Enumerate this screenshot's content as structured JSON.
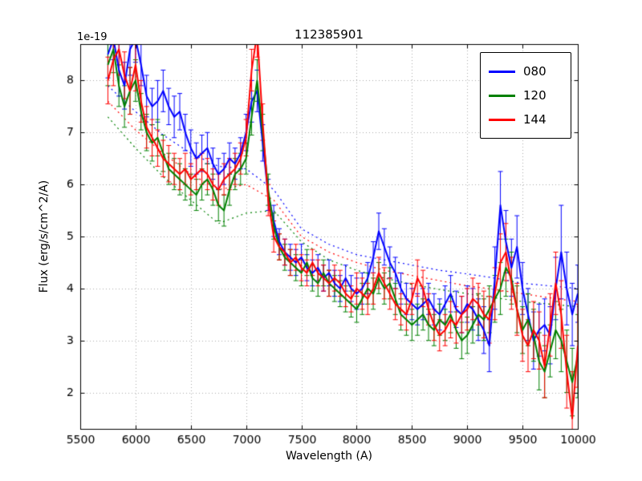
{
  "figure": {
    "background": "#ffffff",
    "axes_color": "#000000",
    "grid_color": "#aaaaaa"
  },
  "chart_data": {
    "type": "line",
    "title": "112385901",
    "xlabel": "Wavelength (A)",
    "ylabel": "Flux (erg/s/cm^2/A)",
    "y_offset_text": "1e-19",
    "xlim": [
      5500,
      10000
    ],
    "ylim": [
      1.3,
      8.7
    ],
    "xticks": [
      5500,
      6000,
      6500,
      7000,
      7500,
      8000,
      8500,
      9000,
      9500,
      10000
    ],
    "yticks": [
      2,
      3,
      4,
      5,
      6,
      7,
      8
    ],
    "grid": true,
    "grid_style": "dotted",
    "legend_position": "upper right",
    "error_bars": true,
    "x": [
      5750,
      5800,
      5850,
      5900,
      5950,
      6000,
      6050,
      6100,
      6150,
      6200,
      6250,
      6300,
      6350,
      6400,
      6450,
      6500,
      6550,
      6600,
      6650,
      6700,
      6750,
      6800,
      6850,
      6900,
      6950,
      7000,
      7050,
      7100,
      7150,
      7200,
      7250,
      7300,
      7350,
      7400,
      7450,
      7500,
      7550,
      7600,
      7650,
      7700,
      7750,
      7800,
      7850,
      7900,
      7950,
      8000,
      8050,
      8100,
      8150,
      8200,
      8250,
      8300,
      8350,
      8400,
      8450,
      8500,
      8550,
      8600,
      8650,
      8700,
      8750,
      8800,
      8850,
      8900,
      8950,
      9000,
      9050,
      9100,
      9150,
      9200,
      9250,
      9300,
      9350,
      9400,
      9450,
      9500,
      9550,
      9600,
      9650,
      9700,
      9750,
      9800,
      9850,
      9900,
      9950,
      10000
    ],
    "series": [
      {
        "name": "080",
        "color": "#0000ff",
        "values": [
          8.5,
          8.8,
          8.2,
          7.9,
          8.6,
          8.8,
          8.3,
          7.7,
          7.5,
          7.6,
          7.8,
          7.5,
          7.3,
          7.4,
          7.0,
          6.7,
          6.5,
          6.6,
          6.7,
          6.4,
          6.2,
          6.3,
          6.5,
          6.4,
          6.6,
          7.0,
          7.6,
          7.8,
          6.8,
          5.8,
          5.3,
          4.9,
          4.7,
          4.6,
          4.5,
          4.6,
          4.4,
          4.3,
          4.4,
          4.2,
          4.3,
          4.1,
          4.0,
          4.2,
          4.0,
          3.9,
          4.0,
          4.2,
          4.6,
          5.1,
          4.8,
          4.5,
          4.3,
          4.0,
          3.8,
          3.7,
          3.6,
          3.7,
          3.8,
          3.6,
          3.5,
          3.7,
          3.9,
          3.6,
          3.5,
          3.7,
          3.6,
          3.4,
          3.2,
          2.9,
          4.2,
          5.6,
          4.9,
          4.4,
          4.8,
          4.0,
          3.5,
          3.0,
          3.2,
          3.3,
          3.1,
          4.0,
          4.7,
          4.0,
          3.5,
          3.9
        ],
        "err": [
          0.45,
          0.4,
          0.5,
          0.45,
          0.5,
          0.45,
          0.4,
          0.4,
          0.35,
          0.4,
          0.4,
          0.35,
          0.4,
          0.35,
          0.35,
          0.35,
          0.3,
          0.35,
          0.3,
          0.3,
          0.3,
          0.3,
          0.3,
          0.3,
          0.3,
          0.35,
          0.4,
          0.4,
          0.35,
          0.3,
          0.3,
          0.25,
          0.25,
          0.25,
          0.25,
          0.25,
          0.25,
          0.25,
          0.25,
          0.25,
          0.25,
          0.25,
          0.25,
          0.25,
          0.25,
          0.3,
          0.3,
          0.3,
          0.3,
          0.35,
          0.35,
          0.3,
          0.3,
          0.3,
          0.3,
          0.3,
          0.3,
          0.3,
          0.3,
          0.3,
          0.3,
          0.35,
          0.35,
          0.35,
          0.35,
          0.35,
          0.4,
          0.4,
          0.45,
          0.5,
          0.6,
          0.65,
          0.6,
          0.55,
          0.6,
          0.5,
          0.5,
          0.55,
          0.5,
          0.5,
          0.55,
          0.6,
          0.9,
          0.7,
          0.6,
          0.55
        ]
      },
      {
        "name": "120",
        "color": "#008000",
        "values": [
          8.3,
          8.6,
          7.9,
          7.5,
          7.8,
          8.0,
          7.4,
          7.0,
          6.8,
          6.9,
          6.6,
          6.3,
          6.2,
          6.1,
          6.0,
          5.9,
          5.8,
          6.0,
          6.1,
          5.9,
          5.6,
          5.5,
          5.9,
          6.2,
          6.3,
          6.5,
          7.3,
          8.0,
          7.0,
          5.9,
          5.2,
          4.8,
          4.6,
          4.5,
          4.4,
          4.3,
          4.5,
          4.2,
          4.1,
          4.3,
          4.1,
          4.0,
          3.9,
          3.8,
          3.7,
          3.6,
          3.8,
          4.0,
          3.9,
          4.2,
          4.0,
          4.1,
          3.8,
          3.5,
          3.4,
          3.3,
          3.4,
          3.5,
          3.3,
          3.2,
          3.4,
          3.3,
          3.5,
          3.2,
          3.0,
          3.1,
          3.3,
          3.5,
          3.4,
          3.6,
          3.8,
          4.0,
          4.4,
          4.2,
          3.6,
          3.2,
          3.4,
          3.1,
          2.6,
          2.4,
          2.8,
          3.2,
          3.0,
          2.6,
          2.2,
          2.7
        ],
        "err": [
          0.4,
          0.45,
          0.4,
          0.4,
          0.45,
          0.4,
          0.35,
          0.35,
          0.35,
          0.35,
          0.35,
          0.3,
          0.3,
          0.3,
          0.3,
          0.3,
          0.3,
          0.3,
          0.3,
          0.3,
          0.3,
          0.3,
          0.3,
          0.3,
          0.3,
          0.3,
          0.35,
          0.4,
          0.35,
          0.3,
          0.25,
          0.25,
          0.25,
          0.25,
          0.25,
          0.25,
          0.25,
          0.25,
          0.25,
          0.25,
          0.25,
          0.25,
          0.25,
          0.25,
          0.25,
          0.25,
          0.3,
          0.3,
          0.3,
          0.3,
          0.3,
          0.3,
          0.3,
          0.3,
          0.3,
          0.3,
          0.3,
          0.3,
          0.3,
          0.3,
          0.3,
          0.3,
          0.35,
          0.35,
          0.35,
          0.35,
          0.35,
          0.4,
          0.4,
          0.45,
          0.45,
          0.5,
          0.55,
          0.5,
          0.45,
          0.45,
          0.5,
          0.5,
          0.55,
          0.5,
          0.5,
          0.55,
          0.6,
          0.6,
          0.65,
          0.8
        ]
      },
      {
        "name": "144",
        "color": "#ff0000",
        "values": [
          8.0,
          8.4,
          8.6,
          8.1,
          7.8,
          8.3,
          7.6,
          7.1,
          6.9,
          6.7,
          6.5,
          6.4,
          6.3,
          6.2,
          6.3,
          6.1,
          6.2,
          6.3,
          6.2,
          6.0,
          5.9,
          6.1,
          6.2,
          6.3,
          6.5,
          6.9,
          8.2,
          8.9,
          7.2,
          5.7,
          5.0,
          4.8,
          4.7,
          4.5,
          4.6,
          4.4,
          4.3,
          4.5,
          4.3,
          4.2,
          4.1,
          4.2,
          4.1,
          3.9,
          3.8,
          4.0,
          3.9,
          3.8,
          4.0,
          4.3,
          4.1,
          3.9,
          3.7,
          3.6,
          3.5,
          3.8,
          4.2,
          4.0,
          3.6,
          3.3,
          3.1,
          3.2,
          3.4,
          3.3,
          3.5,
          3.6,
          3.8,
          3.7,
          3.5,
          3.4,
          3.9,
          4.5,
          4.7,
          4.1,
          3.6,
          3.1,
          2.9,
          3.2,
          3.0,
          2.5,
          3.3,
          4.1,
          3.5,
          2.4,
          1.5,
          2.9
        ],
        "err": [
          0.45,
          0.5,
          0.5,
          0.45,
          0.45,
          0.5,
          0.4,
          0.4,
          0.35,
          0.35,
          0.35,
          0.35,
          0.3,
          0.3,
          0.3,
          0.3,
          0.3,
          0.3,
          0.3,
          0.3,
          0.3,
          0.3,
          0.3,
          0.3,
          0.3,
          0.35,
          0.4,
          0.45,
          0.35,
          0.3,
          0.3,
          0.25,
          0.25,
          0.25,
          0.25,
          0.25,
          0.25,
          0.25,
          0.25,
          0.25,
          0.25,
          0.25,
          0.25,
          0.25,
          0.25,
          0.3,
          0.3,
          0.3,
          0.3,
          0.3,
          0.3,
          0.3,
          0.3,
          0.3,
          0.3,
          0.3,
          0.35,
          0.35,
          0.3,
          0.3,
          0.3,
          0.3,
          0.35,
          0.35,
          0.35,
          0.4,
          0.4,
          0.4,
          0.45,
          0.45,
          0.5,
          0.55,
          0.55,
          0.5,
          0.5,
          0.5,
          0.5,
          0.55,
          0.55,
          0.6,
          0.6,
          0.6,
          0.65,
          0.7,
          0.9,
          0.8
        ]
      }
    ],
    "model_x": [
      5750,
      6000,
      6250,
      6500,
      6750,
      7000,
      7250,
      7500,
      7750,
      8000,
      8250,
      8500,
      8750,
      9000,
      9250,
      9500,
      9750,
      10000
    ],
    "models": [
      {
        "name": "080 model",
        "color": "#0000ff",
        "values": [
          7.9,
          7.4,
          6.95,
          6.6,
          6.35,
          6.3,
          5.9,
          5.15,
          4.85,
          4.65,
          4.55,
          4.45,
          4.35,
          4.28,
          4.2,
          4.1,
          4.05,
          4.0
        ]
      },
      {
        "name": "120 model",
        "color": "#008000",
        "values": [
          7.3,
          6.7,
          6.15,
          5.7,
          5.25,
          5.45,
          5.5,
          4.9,
          4.55,
          4.35,
          4.2,
          4.08,
          3.98,
          3.9,
          3.82,
          3.75,
          3.7,
          3.65
        ]
      },
      {
        "name": "144 model",
        "color": "#ff0000",
        "values": [
          7.6,
          7.05,
          6.6,
          6.2,
          5.9,
          6.0,
          5.7,
          5.0,
          4.7,
          4.5,
          4.35,
          4.25,
          4.15,
          4.05,
          3.98,
          3.9,
          3.82,
          3.75
        ]
      }
    ]
  }
}
